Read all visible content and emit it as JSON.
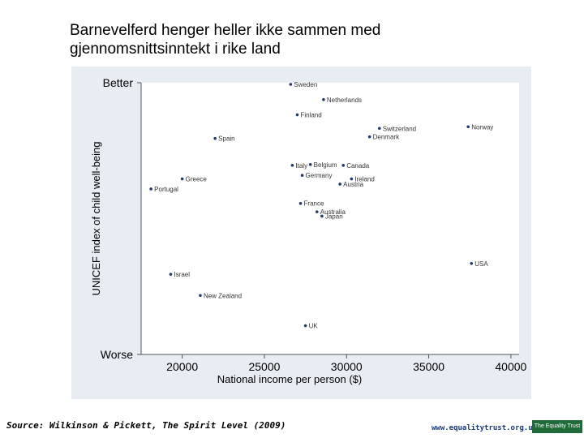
{
  "slide": {
    "title_line1": "Barnevelferd henger heller ikke sammen med",
    "title_line2": "gjennomsnittsinntekt i rike land",
    "source": "Source: Wilkinson & Pickett, The Spirit Level (2009)",
    "website": "www.equalitytrust.org.uk",
    "logo_text": "The Equality Trust"
  },
  "colors": {
    "panel_background": "#e8edf3",
    "plot_background": "#ffffff",
    "point": "#1f3a6b",
    "text": "#000000",
    "axis": "#555555"
  },
  "chart_data": {
    "type": "scatter",
    "xlabel": "National income per person ($)",
    "ylabel": "UNICEF index of child well-being",
    "xlim": [
      17500,
      40500
    ],
    "ylim": [
      0,
      100
    ],
    "xticks": [
      20000,
      25000,
      30000,
      35000,
      40000
    ],
    "yticks": [
      {
        "value": 100,
        "label": "Better"
      },
      {
        "value": 0,
        "label": "Worse"
      }
    ],
    "grid": false,
    "points": [
      {
        "label": "Sweden",
        "x": 26600,
        "y": 99.4
      },
      {
        "label": "Netherlands",
        "x": 28600,
        "y": 93.8
      },
      {
        "label": "Finland",
        "x": 27000,
        "y": 88.2
      },
      {
        "label": "Switzerland",
        "x": 32000,
        "y": 83.2
      },
      {
        "label": "Norway",
        "x": 37400,
        "y": 83.8
      },
      {
        "label": "Denmark",
        "x": 31400,
        "y": 80.1
      },
      {
        "label": "Spain",
        "x": 22000,
        "y": 79.5
      },
      {
        "label": "Italy",
        "x": 26700,
        "y": 69.6
      },
      {
        "label": "Belgium",
        "x": 27800,
        "y": 69.9
      },
      {
        "label": "Canada",
        "x": 29800,
        "y": 69.6
      },
      {
        "label": "Germany",
        "x": 27300,
        "y": 65.9
      },
      {
        "label": "Ireland",
        "x": 30300,
        "y": 64.6
      },
      {
        "label": "Greece",
        "x": 20000,
        "y": 64.6
      },
      {
        "label": "Austria",
        "x": 29600,
        "y": 62.7
      },
      {
        "label": "Portugal",
        "x": 18100,
        "y": 60.9
      },
      {
        "label": "France",
        "x": 27200,
        "y": 55.6
      },
      {
        "label": "Australia",
        "x": 28200,
        "y": 52.5
      },
      {
        "label": "Japan",
        "x": 28500,
        "y": 50.9
      },
      {
        "label": "USA",
        "x": 37600,
        "y": 33.5
      },
      {
        "label": "Israel",
        "x": 19300,
        "y": 29.5
      },
      {
        "label": "New Zealand",
        "x": 21100,
        "y": 21.7
      },
      {
        "label": "UK",
        "x": 27500,
        "y": 10.6
      }
    ]
  }
}
